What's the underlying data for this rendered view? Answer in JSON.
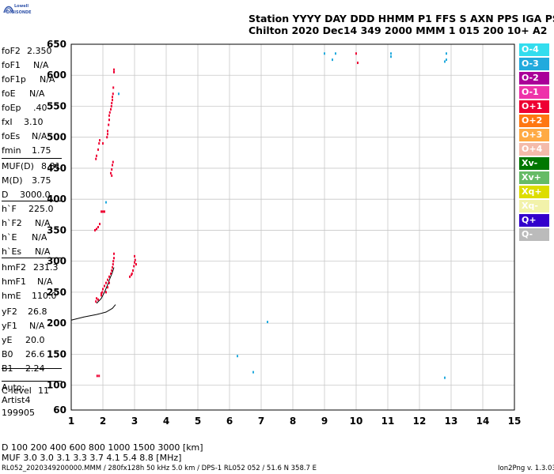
{
  "logo": {
    "top": "Lowell",
    "bottom": "DIGISONDE"
  },
  "header": {
    "line1": "Station YYYY DAY   DDD HHMM P1  FFS S AXN PPS IGA PS",
    "line2": "Chilton 2020 Dec14 349 2000 MMM     1 015 200 10+ A2"
  },
  "params": [
    {
      "k": "foF2",
      "v": "2.350"
    },
    {
      "k": "foF1",
      "v": "N/A"
    },
    {
      "k": "foF1p",
      "v": "N/A"
    },
    {
      "k": "foE",
      "v": "N/A"
    },
    {
      "k": "foEp",
      "v": ".40"
    },
    {
      "k": "fxI",
      "v": "3.10"
    },
    {
      "k": "foEs",
      "v": "N/A"
    },
    {
      "k": "fmin",
      "v": "1.75"
    },
    {
      "k": "MUF(D)",
      "v": "8.81"
    },
    {
      "k": "M(D)",
      "v": "3.75"
    },
    {
      "k": "D",
      "v": "3000.0"
    },
    {
      "k": "h`F",
      "v": "225.0"
    },
    {
      "k": "h`F2",
      "v": "N/A"
    },
    {
      "k": "h`E",
      "v": "N/A"
    },
    {
      "k": "h`Es",
      "v": "N/A"
    },
    {
      "k": "hmF2",
      "v": "231.3"
    },
    {
      "k": "hmF1",
      "v": "N/A"
    },
    {
      "k": "hmE",
      "v": "110.0"
    },
    {
      "k": "yF2",
      "v": "26.8"
    },
    {
      "k": "yF1",
      "v": "N/A"
    },
    {
      "k": "yE",
      "v": "20.0"
    },
    {
      "k": "B0",
      "v": "26.6"
    },
    {
      "k": "B1",
      "v": "2.24"
    },
    {
      "k": "C-level",
      "v": "11"
    }
  ],
  "auto_block": {
    "l1": "Auto:",
    "l2": "Artist4",
    "l3": "199905"
  },
  "legend": [
    {
      "label": "O-4",
      "color": "#33ddee"
    },
    {
      "label": "O-3",
      "color": "#22aadd"
    },
    {
      "label": "O-2",
      "color": "#aa0099"
    },
    {
      "label": "O-1",
      "color": "#ee33aa"
    },
    {
      "label": "O+1",
      "color": "#ee0033"
    },
    {
      "label": "O+2",
      "color": "#ff7711"
    },
    {
      "label": "O+3",
      "color": "#ffaa44"
    },
    {
      "label": "O+4",
      "color": "#f4bbaa"
    },
    {
      "label": "Xv-",
      "color": "#007700"
    },
    {
      "label": "Xv+",
      "color": "#66bb66"
    },
    {
      "label": "Xq+",
      "color": "#dddd00"
    },
    {
      "label": "Xq-",
      "color": "#f2f2aa"
    },
    {
      "label": "Q+",
      "color": "#3300cc"
    },
    {
      "label": "Q-",
      "color": "#bbbbbb"
    }
  ],
  "footer": {
    "d_line": "D   100  200  400  600  800 1000  1500 3000 [km]",
    "muf_line": "MUF  3.0  3.0  3.1  3.3  3.7  4.1  5.4  8.8 [MHz]",
    "file_line": "RL052_2020349200000.MMM / 280fx128h 50 kHz 5.0 km / DPS-1 RL052 052 / 51.6 N 358.7 E",
    "version": "Ion2Png v. 1.3.03"
  },
  "chart_data": {
    "type": "scatter",
    "x_ticks": [
      "1",
      "2",
      "3",
      "4",
      "5",
      "6",
      "7",
      "8",
      "9",
      "10",
      "11",
      "12",
      "13",
      "14",
      "15"
    ],
    "y_ticks": [
      "650",
      "600",
      "550",
      "500",
      "450",
      "400",
      "350",
      "300",
      "250",
      "200",
      "150",
      "100",
      "60"
    ],
    "xlim": [
      1,
      15
    ],
    "ylim": [
      60,
      650
    ],
    "grid": true,
    "series": [
      {
        "color": "#ee0033",
        "points": [
          [
            2.35,
            609
          ],
          [
            2.35,
            605
          ],
          [
            2.33,
            580
          ],
          [
            2.32,
            570
          ],
          [
            2.3,
            565
          ],
          [
            2.3,
            560
          ],
          [
            2.28,
            555
          ],
          [
            2.27,
            550
          ],
          [
            2.25,
            545
          ],
          [
            2.22,
            540
          ],
          [
            2.2,
            535
          ],
          [
            2.2,
            528
          ],
          [
            2.18,
            520
          ],
          [
            2.15,
            510
          ],
          [
            2.15,
            505
          ],
          [
            2.13,
            500
          ],
          [
            2.32,
            460
          ],
          [
            2.3,
            455
          ],
          [
            2.28,
            448
          ],
          [
            2.25,
            442
          ],
          [
            2.28,
            438
          ],
          [
            1.9,
            495
          ],
          [
            1.88,
            490
          ],
          [
            1.85,
            480
          ],
          [
            1.8,
            470
          ],
          [
            1.78,
            465
          ],
          [
            2.0,
            490
          ],
          [
            2.0,
            380
          ],
          [
            2.05,
            380
          ],
          [
            1.95,
            380
          ],
          [
            1.9,
            360
          ],
          [
            1.85,
            355
          ],
          [
            1.8,
            352
          ],
          [
            1.75,
            350
          ],
          [
            2.35,
            312
          ],
          [
            2.35,
            305
          ],
          [
            2.33,
            300
          ],
          [
            2.32,
            295
          ],
          [
            2.3,
            290
          ],
          [
            2.28,
            285
          ],
          [
            2.25,
            280
          ],
          [
            2.2,
            275
          ],
          [
            2.15,
            270
          ],
          [
            2.1,
            265
          ],
          [
            2.05,
            260
          ],
          [
            2.0,
            255
          ],
          [
            1.98,
            250
          ],
          [
            1.95,
            248
          ],
          [
            1.95,
            245
          ],
          [
            2.1,
            250
          ],
          [
            2.15,
            258
          ],
          [
            2.2,
            265
          ],
          [
            3.0,
            308
          ],
          [
            3.02,
            302
          ],
          [
            3.0,
            298
          ],
          [
            3.05,
            295
          ],
          [
            2.98,
            292
          ],
          [
            2.95,
            285
          ],
          [
            2.9,
            278
          ],
          [
            2.85,
            275
          ],
          [
            2.92,
            280
          ],
          [
            1.8,
            240
          ],
          [
            1.85,
            238
          ],
          [
            1.78,
            235
          ],
          [
            1.82,
            115
          ],
          [
            1.88,
            115
          ],
          [
            10.0,
            635
          ],
          [
            10.05,
            620
          ]
        ]
      },
      {
        "color": "#22aadd",
        "points": [
          [
            9.0,
            635
          ],
          [
            9.35,
            635
          ],
          [
            9.25,
            625
          ],
          [
            11.1,
            635
          ],
          [
            11.1,
            630
          ],
          [
            12.85,
            635
          ],
          [
            12.85,
            625
          ],
          [
            12.8,
            622
          ],
          [
            6.75,
            121
          ],
          [
            7.2,
            202
          ],
          [
            6.25,
            147
          ],
          [
            12.8,
            112
          ],
          [
            2.1,
            395
          ],
          [
            2.5,
            570
          ]
        ]
      }
    ],
    "trace": [
      [
        1,
        205
      ],
      [
        1.4,
        210
      ],
      [
        1.8,
        214
      ],
      [
        2.1,
        218
      ],
      [
        2.3,
        224
      ],
      [
        2.4,
        230
      ]
    ],
    "trace2": [
      [
        1.8,
        232
      ],
      [
        1.95,
        240
      ],
      [
        2.05,
        250
      ],
      [
        2.15,
        262
      ],
      [
        2.22,
        272
      ],
      [
        2.3,
        282
      ],
      [
        2.35,
        290
      ]
    ]
  }
}
